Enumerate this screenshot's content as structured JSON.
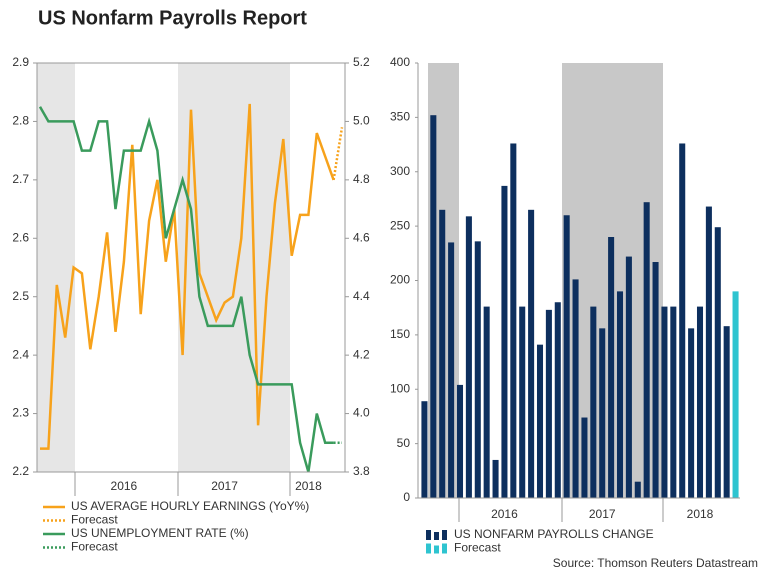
{
  "title": "US Nonfarm Payrolls Report",
  "source": "Source: Thomson Reuters Datastream",
  "chart_data": [
    {
      "type": "line",
      "categories": [
        null,
        null,
        null,
        null,
        null,
        null,
        null,
        null,
        null,
        null,
        "2016",
        null,
        null,
        null,
        null,
        null,
        null,
        null,
        null,
        null,
        null,
        null,
        "2017",
        null,
        null,
        null,
        null,
        null,
        null,
        null,
        null,
        null,
        "2018",
        null,
        null,
        null,
        null
      ],
      "series": [
        {
          "name": "US AVERAGE HOURLY EARNINGS (YoY%)",
          "color": "#f7a21b",
          "linestyle": "solid",
          "axis": "y",
          "values": [
            2.24,
            2.24,
            2.52,
            2.43,
            2.55,
            2.54,
            2.41,
            2.5,
            2.61,
            2.44,
            2.56,
            2.76,
            2.47,
            2.63,
            2.7,
            2.56,
            2.65,
            2.4,
            2.82,
            2.54,
            2.5,
            2.46,
            2.49,
            2.5,
            2.6,
            2.83,
            2.28,
            2.5,
            2.66,
            2.77,
            2.57,
            2.64,
            2.64,
            2.78,
            2.74,
            2.7,
            null
          ]
        },
        {
          "name": "Forecast",
          "color": "#f7a21b",
          "linestyle": "dotted",
          "axis": "y",
          "values": [
            null,
            null,
            null,
            null,
            null,
            null,
            null,
            null,
            null,
            null,
            null,
            null,
            null,
            null,
            null,
            null,
            null,
            null,
            null,
            null,
            null,
            null,
            null,
            null,
            null,
            null,
            null,
            null,
            null,
            null,
            null,
            null,
            null,
            null,
            null,
            2.7,
            2.79
          ]
        },
        {
          "name": "US UNEMPLOYMENT RATE (%)",
          "color": "#3a9b5c",
          "linestyle": "solid",
          "axis": "y2",
          "values": [
            5.05,
            5.0,
            5.0,
            5.0,
            5.0,
            4.9,
            4.9,
            5.0,
            5.0,
            4.7,
            4.9,
            4.9,
            4.9,
            5.0,
            4.9,
            4.6,
            4.7,
            4.8,
            4.7,
            4.4,
            4.3,
            4.3,
            4.3,
            4.3,
            4.4,
            4.2,
            4.1,
            4.1,
            4.1,
            4.1,
            4.1,
            3.9,
            3.8,
            4.0,
            3.9,
            3.9,
            null
          ]
        },
        {
          "name": "Forecast",
          "color": "#3a9b5c",
          "linestyle": "dotted",
          "axis": "y2",
          "values": [
            null,
            null,
            null,
            null,
            null,
            null,
            null,
            null,
            null,
            null,
            null,
            null,
            null,
            null,
            null,
            null,
            null,
            null,
            null,
            null,
            null,
            null,
            null,
            null,
            null,
            null,
            null,
            null,
            null,
            null,
            null,
            null,
            null,
            null,
            null,
            3.9,
            3.9
          ]
        }
      ],
      "ylim": [
        2.2,
        2.9
      ],
      "yticks": [
        2.2,
        2.3,
        2.4,
        2.5,
        2.6,
        2.7,
        2.8,
        2.9
      ],
      "y2lim": [
        3.8,
        5.2
      ],
      "y2ticks": [
        3.8,
        {
          "value": 4,
          "label": "4.0"
        },
        4.2,
        4.4,
        4.6,
        4.8,
        {
          "value": 5,
          "label": "5.0"
        },
        5.2
      ]
    },
    {
      "type": "bar",
      "categories": [
        null,
        null,
        null,
        null,
        null,
        null,
        null,
        null,
        null,
        "2016",
        null,
        null,
        null,
        null,
        null,
        null,
        null,
        null,
        null,
        null,
        "2017",
        null,
        null,
        null,
        null,
        null,
        null,
        null,
        null,
        null,
        null,
        "2018",
        null,
        null,
        null,
        null
      ],
      "series": [
        {
          "name": "US NONFARM PAYROLLS CHANGE",
          "color": "#0d2f5e",
          "values": [
            89,
            352,
            265,
            235,
            104,
            259,
            236,
            176,
            35,
            287,
            326,
            176,
            265,
            141,
            173,
            180,
            260,
            201,
            74,
            176,
            156,
            240,
            190,
            222,
            15,
            272,
            217,
            176,
            176,
            326,
            156,
            176,
            268,
            249,
            158,
            null
          ]
        },
        {
          "name": "Forecast",
          "color": "#2ec4d0",
          "values": [
            null,
            null,
            null,
            null,
            null,
            null,
            null,
            null,
            null,
            null,
            null,
            null,
            null,
            null,
            null,
            null,
            null,
            null,
            null,
            null,
            null,
            null,
            null,
            null,
            null,
            null,
            null,
            null,
            null,
            null,
            null,
            null,
            null,
            null,
            null,
            190
          ]
        }
      ],
      "ylim": [
        0,
        400
      ],
      "yticks": [
        0,
        50,
        100,
        150,
        200,
        250,
        300,
        350,
        400
      ]
    }
  ]
}
